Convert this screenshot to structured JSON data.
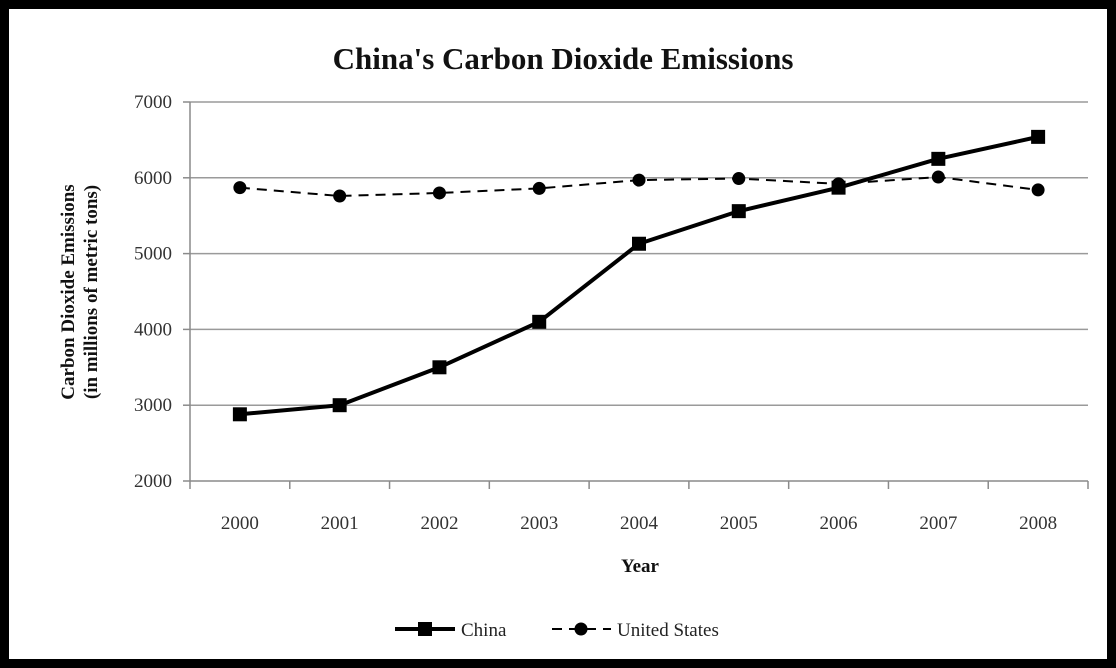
{
  "chart_data": {
    "type": "line",
    "title": "China's Carbon Dioxide Emissions",
    "xlabel": "Year",
    "ylabel_line1": "Carbon Dioxide Emissions",
    "ylabel_line2": "(in millions of metric tons)",
    "categories": [
      "2000",
      "2001",
      "2002",
      "2003",
      "2004",
      "2005",
      "2006",
      "2007",
      "2008"
    ],
    "yticks": [
      "2000",
      "3000",
      "4000",
      "5000",
      "6000",
      "7000"
    ],
    "ylim": [
      2000,
      7000
    ],
    "grid": true,
    "legend_position": "bottom",
    "series": [
      {
        "name": "China",
        "values": [
          2880,
          3000,
          3500,
          4100,
          5130,
          5560,
          5870,
          6250,
          6540
        ],
        "color": "#000000",
        "line_style": "solid",
        "marker": "square"
      },
      {
        "name": "United States",
        "values": [
          5870,
          5760,
          5800,
          5860,
          5970,
          5990,
          5920,
          6010,
          5840
        ],
        "color": "#000000",
        "line_style": "dashed",
        "marker": "circle"
      }
    ]
  }
}
